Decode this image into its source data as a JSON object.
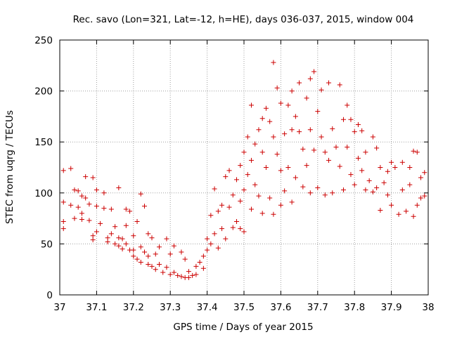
{
  "chart_data": {
    "type": "scatter",
    "title": "Rec. savo (Lon=321, Lat=-12, h=HE), days 036-037, 2015, window 004",
    "xlabel": "GPS time / Days of year 2015",
    "ylabel": "STEC from uqrg / TECUs",
    "xlim": [
      37,
      38
    ],
    "ylim": [
      0,
      250
    ],
    "xticks": [
      "37",
      "37.1",
      "37.2",
      "37.3",
      "37.4",
      "37.5",
      "37.6",
      "37.7",
      "37.8",
      "37.9",
      "38"
    ],
    "yticks": [
      "0",
      "50",
      "100",
      "150",
      "200",
      "250"
    ],
    "marker": "+",
    "color": "#cc0000",
    "series": [
      {
        "name": "STEC",
        "points": [
          [
            37.01,
            122
          ],
          [
            37.01,
            91
          ],
          [
            37.01,
            72
          ],
          [
            37.01,
            65
          ],
          [
            37.03,
            124
          ],
          [
            37.03,
            88
          ],
          [
            37.04,
            75
          ],
          [
            37.04,
            103
          ],
          [
            37.05,
            102
          ],
          [
            37.05,
            86
          ],
          [
            37.06,
            97
          ],
          [
            37.06,
            80
          ],
          [
            37.06,
            74
          ],
          [
            37.07,
            116
          ],
          [
            37.07,
            95
          ],
          [
            37.08,
            89
          ],
          [
            37.08,
            73
          ],
          [
            37.09,
            115
          ],
          [
            37.09,
            58
          ],
          [
            37.09,
            54
          ],
          [
            37.1,
            103
          ],
          [
            37.1,
            87
          ],
          [
            37.1,
            62
          ],
          [
            37.11,
            70
          ],
          [
            37.12,
            100
          ],
          [
            37.12,
            85
          ],
          [
            37.13,
            56
          ],
          [
            37.13,
            52
          ],
          [
            37.14,
            84
          ],
          [
            37.14,
            60
          ],
          [
            37.15,
            67
          ],
          [
            37.15,
            50
          ],
          [
            37.16,
            56
          ],
          [
            37.16,
            48
          ],
          [
            37.16,
            105
          ],
          [
            37.17,
            55
          ],
          [
            37.17,
            45
          ],
          [
            37.18,
            84
          ],
          [
            37.18,
            68
          ],
          [
            37.18,
            50
          ],
          [
            37.19,
            82
          ],
          [
            37.19,
            44
          ],
          [
            37.2,
            58
          ],
          [
            37.2,
            44
          ],
          [
            37.2,
            38
          ],
          [
            37.21,
            72
          ],
          [
            37.21,
            35
          ],
          [
            37.22,
            99
          ],
          [
            37.22,
            47
          ],
          [
            37.22,
            32
          ],
          [
            37.23,
            87
          ],
          [
            37.23,
            42
          ],
          [
            37.24,
            60
          ],
          [
            37.24,
            38
          ],
          [
            37.24,
            30
          ],
          [
            37.25,
            56
          ],
          [
            37.25,
            28
          ],
          [
            37.26,
            40
          ],
          [
            37.26,
            25
          ],
          [
            37.27,
            47
          ],
          [
            37.27,
            30
          ],
          [
            37.28,
            22
          ],
          [
            37.29,
            55
          ],
          [
            37.29,
            27
          ],
          [
            37.3,
            40
          ],
          [
            37.3,
            20
          ],
          [
            37.31,
            48
          ],
          [
            37.31,
            22
          ],
          [
            37.32,
            19
          ],
          [
            37.33,
            42
          ],
          [
            37.33,
            18
          ],
          [
            37.34,
            35
          ],
          [
            37.34,
            17
          ],
          [
            37.35,
            23
          ],
          [
            37.35,
            17
          ],
          [
            37.36,
            19
          ],
          [
            37.37,
            28
          ],
          [
            37.37,
            20
          ],
          [
            37.38,
            32
          ],
          [
            37.39,
            38
          ],
          [
            37.39,
            26
          ],
          [
            37.4,
            55
          ],
          [
            37.4,
            44
          ],
          [
            37.41,
            78
          ],
          [
            37.41,
            50
          ],
          [
            37.42,
            104
          ],
          [
            37.42,
            60
          ],
          [
            37.43,
            82
          ],
          [
            37.43,
            46
          ],
          [
            37.44,
            88
          ],
          [
            37.44,
            65
          ],
          [
            37.45,
            116
          ],
          [
            37.45,
            55
          ],
          [
            37.46,
            122
          ],
          [
            37.46,
            86
          ],
          [
            37.47,
            98
          ],
          [
            37.47,
            66
          ],
          [
            37.48,
            113
          ],
          [
            37.48,
            72
          ],
          [
            37.49,
            127
          ],
          [
            37.49,
            92
          ],
          [
            37.49,
            65
          ],
          [
            37.5,
            140
          ],
          [
            37.5,
            103
          ],
          [
            37.5,
            62
          ],
          [
            37.51,
            155
          ],
          [
            37.51,
            118
          ],
          [
            37.52,
            186
          ],
          [
            37.52,
            132
          ],
          [
            37.52,
            84
          ],
          [
            37.53,
            148
          ],
          [
            37.53,
            108
          ],
          [
            37.54,
            162
          ],
          [
            37.54,
            97
          ],
          [
            37.55,
            173
          ],
          [
            37.55,
            140
          ],
          [
            37.55,
            80
          ],
          [
            37.56,
            183
          ],
          [
            37.56,
            125
          ],
          [
            37.57,
            170
          ],
          [
            37.57,
            95
          ],
          [
            37.58,
            228
          ],
          [
            37.58,
            155
          ],
          [
            37.58,
            79
          ],
          [
            37.59,
            203
          ],
          [
            37.59,
            138
          ],
          [
            37.6,
            188
          ],
          [
            37.6,
            122
          ],
          [
            37.6,
            88
          ],
          [
            37.61,
            158
          ],
          [
            37.61,
            102
          ],
          [
            37.62,
            186
          ],
          [
            37.62,
            125
          ],
          [
            37.63,
            200
          ],
          [
            37.63,
            162
          ],
          [
            37.63,
            91
          ],
          [
            37.64,
            175
          ],
          [
            37.64,
            115
          ],
          [
            37.65,
            208
          ],
          [
            37.65,
            160
          ],
          [
            37.66,
            143
          ],
          [
            37.66,
            106
          ],
          [
            37.67,
            193
          ],
          [
            37.67,
            127
          ],
          [
            37.68,
            212
          ],
          [
            37.68,
            162
          ],
          [
            37.68,
            100
          ],
          [
            37.69,
            219
          ],
          [
            37.69,
            142
          ],
          [
            37.7,
            180
          ],
          [
            37.7,
            105
          ],
          [
            37.71,
            201
          ],
          [
            37.71,
            155
          ],
          [
            37.72,
            140
          ],
          [
            37.72,
            98
          ],
          [
            37.73,
            208
          ],
          [
            37.73,
            132
          ],
          [
            37.74,
            163
          ],
          [
            37.74,
            100
          ],
          [
            37.75,
            145
          ],
          [
            37.76,
            206
          ],
          [
            37.76,
            126
          ],
          [
            37.77,
            172
          ],
          [
            37.77,
            103
          ],
          [
            37.78,
            186
          ],
          [
            37.78,
            145
          ],
          [
            37.79,
            172
          ],
          [
            37.79,
            118
          ],
          [
            37.8,
            160
          ],
          [
            37.8,
            108
          ],
          [
            37.81,
            167
          ],
          [
            37.81,
            134
          ],
          [
            37.82,
            161
          ],
          [
            37.82,
            122
          ],
          [
            37.83,
            103
          ],
          [
            37.83,
            140
          ],
          [
            37.84,
            112
          ],
          [
            37.85,
            155
          ],
          [
            37.85,
            101
          ],
          [
            37.86,
            144
          ],
          [
            37.86,
            105
          ],
          [
            37.87,
            125
          ],
          [
            37.87,
            83
          ],
          [
            37.88,
            110
          ],
          [
            37.89,
            121
          ],
          [
            37.89,
            98
          ],
          [
            37.9,
            130
          ],
          [
            37.9,
            88
          ],
          [
            37.91,
            125
          ],
          [
            37.92,
            79
          ],
          [
            37.93,
            130
          ],
          [
            37.93,
            103
          ],
          [
            37.94,
            82
          ],
          [
            37.95,
            125
          ],
          [
            37.95,
            108
          ],
          [
            37.96,
            141
          ],
          [
            37.96,
            77
          ],
          [
            37.97,
            140
          ],
          [
            37.97,
            88
          ],
          [
            37.98,
            115
          ],
          [
            37.98,
            95
          ],
          [
            37.99,
            120
          ],
          [
            37.99,
            97
          ]
        ]
      }
    ]
  }
}
